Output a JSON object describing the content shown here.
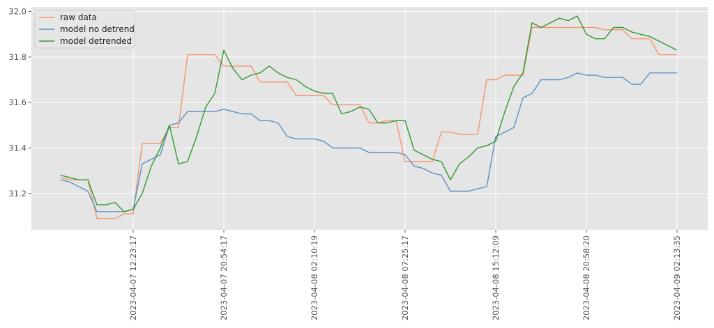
{
  "chart_data": {
    "type": "line",
    "title": "",
    "xlabel": "",
    "ylabel": "",
    "ylim": [
      31.04,
      32.02
    ],
    "grid": true,
    "legend_position": "top-left",
    "x_tick_labels": [
      "2023-04-07 12:23:17",
      "2023-04-07 20:54:17",
      "2023-04-08 02:10:19",
      "2023-04-08 07:25:17",
      "2023-04-08 15:12:09",
      "2023-04-08 20:58:20",
      "2023-04-09 02:13:35"
    ],
    "y_ticks": [
      31.2,
      31.4,
      31.6,
      31.8,
      32.0
    ],
    "y_tick_labels": [
      "31.2",
      "31.4",
      "31.6",
      "31.8",
      "32.0"
    ],
    "series": [
      {
        "name": "raw data",
        "color": "#f4956b",
        "values": [
          31.27,
          31.26,
          31.26,
          31.26,
          31.09,
          31.09,
          31.09,
          31.11,
          31.11,
          31.42,
          31.42,
          31.42,
          31.49,
          31.49,
          31.81,
          31.81,
          31.81,
          31.81,
          31.76,
          31.76,
          31.76,
          31.76,
          31.69,
          31.69,
          31.69,
          31.69,
          31.63,
          31.63,
          31.63,
          31.63,
          31.59,
          31.59,
          31.59,
          31.59,
          31.51,
          31.51,
          31.52,
          31.52,
          31.34,
          31.34,
          31.34,
          31.34,
          31.47,
          31.47,
          31.46,
          31.46,
          31.46,
          31.7,
          31.7,
          31.72,
          31.72,
          31.72,
          31.93,
          31.93,
          31.93,
          31.93,
          31.93,
          31.93,
          31.93,
          31.93,
          31.92,
          31.92,
          31.92,
          31.88,
          31.88,
          31.88,
          31.81,
          31.81,
          31.81
        ]
      },
      {
        "name": "model no detrend",
        "color": "#5b8fc7",
        "values": [
          31.26,
          31.25,
          31.23,
          31.21,
          31.12,
          31.12,
          31.12,
          31.12,
          31.13,
          31.33,
          31.35,
          31.37,
          31.5,
          31.51,
          31.56,
          31.56,
          31.56,
          31.56,
          31.57,
          31.56,
          31.55,
          31.55,
          31.52,
          31.52,
          31.51,
          31.45,
          31.44,
          31.44,
          31.44,
          31.43,
          31.4,
          31.4,
          31.4,
          31.4,
          31.38,
          31.38,
          31.38,
          31.38,
          31.37,
          31.32,
          31.31,
          31.29,
          31.28,
          31.21,
          31.21,
          31.21,
          31.22,
          31.23,
          31.45,
          31.47,
          31.49,
          31.62,
          31.64,
          31.7,
          31.7,
          31.7,
          31.71,
          31.73,
          31.72,
          31.72,
          31.71,
          31.71,
          31.71,
          31.68,
          31.68,
          31.73,
          31.73,
          31.73,
          31.73
        ]
      },
      {
        "name": "model detrended",
        "color": "#2e9a2e",
        "values": [
          31.28,
          31.27,
          31.26,
          31.26,
          31.15,
          31.15,
          31.16,
          31.12,
          31.13,
          31.2,
          31.32,
          31.4,
          31.5,
          31.33,
          31.34,
          31.45,
          31.58,
          31.64,
          31.83,
          31.75,
          31.7,
          31.72,
          31.73,
          31.76,
          31.73,
          31.71,
          31.7,
          31.67,
          31.65,
          31.64,
          31.64,
          31.55,
          31.56,
          31.58,
          31.57,
          31.51,
          31.51,
          31.52,
          31.52,
          31.39,
          31.37,
          31.35,
          31.34,
          31.26,
          31.33,
          31.36,
          31.4,
          31.41,
          31.43,
          31.56,
          31.67,
          31.73,
          31.95,
          31.93,
          31.95,
          31.97,
          31.96,
          31.98,
          31.9,
          31.88,
          31.88,
          31.93,
          31.93,
          31.91,
          31.9,
          31.89,
          31.87,
          31.85,
          31.83
        ]
      }
    ]
  }
}
